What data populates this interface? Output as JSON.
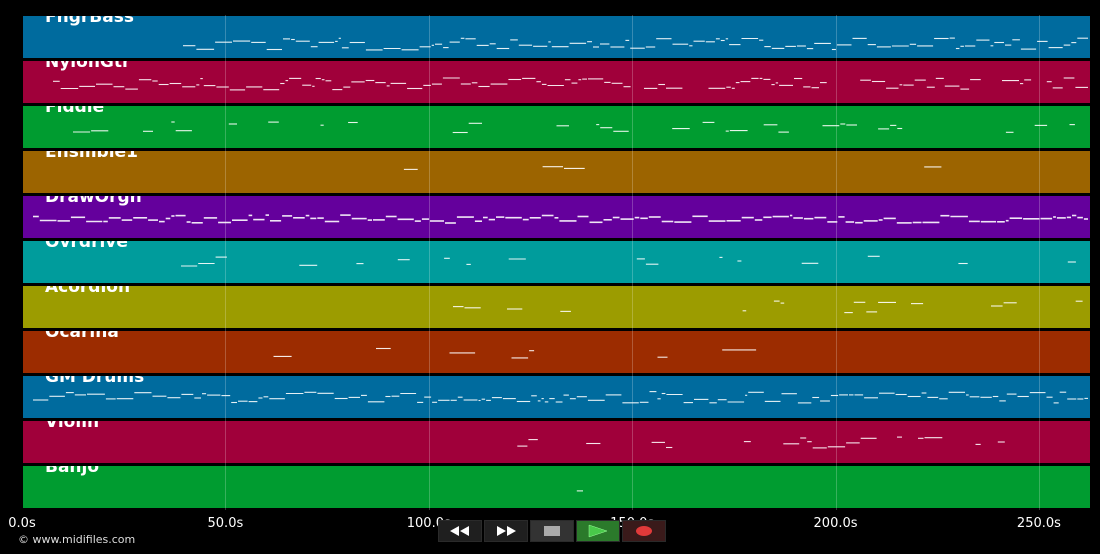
{
  "timeline": {
    "duration_s": 262.8,
    "ticks": [
      {
        "t": 0,
        "label": "0.0s"
      },
      {
        "t": 50,
        "label": "50.0s"
      },
      {
        "t": 100,
        "label": "100.0s"
      },
      {
        "t": 150,
        "label": "150.0s"
      },
      {
        "t": 200,
        "label": "200.0s"
      },
      {
        "t": 250,
        "label": "250.0s"
      }
    ]
  },
  "tracks": [
    {
      "name": "FngrBass",
      "color": "#006b9e"
    },
    {
      "name": "NylonGtr",
      "color": "#a0003a"
    },
    {
      "name": "Fiddle",
      "color": "#009c30"
    },
    {
      "name": "Ensmble1",
      "color": "#9c6400"
    },
    {
      "name": "DrawOrgn",
      "color": "#64009c"
    },
    {
      "name": "Ovrdrive",
      "color": "#009c9c"
    },
    {
      "name": "Acordion",
      "color": "#9c9c00"
    },
    {
      "name": "Ocarina",
      "color": "#9c2c00"
    },
    {
      "name": "GM Drums",
      "color": "#006b9e"
    },
    {
      "name": "Violin",
      "color": "#a0003a"
    },
    {
      "name": "Banjo",
      "color": "#009c30"
    }
  ],
  "copyright": "© www.midifiles.com",
  "transport": {
    "rewind": "rewind-icon",
    "fast_forward": "fast-forward-icon",
    "stop": "stop-icon",
    "play": "play-icon",
    "record": "record-icon"
  },
  "colors": {
    "background": "#000000",
    "note": "#ffffff",
    "play_accent": "#49c94a",
    "record_accent": "#e03a3a"
  }
}
